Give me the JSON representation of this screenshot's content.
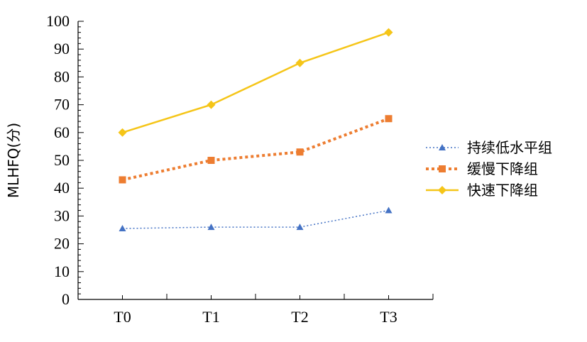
{
  "chart_data": {
    "type": "line",
    "categories": [
      "T0",
      "T1",
      "T2",
      "T3"
    ],
    "ylabel": "MLHFQ(分)",
    "ylim": [
      0,
      100
    ],
    "yticks": [
      0,
      10,
      20,
      30,
      40,
      50,
      60,
      70,
      80,
      90,
      100
    ],
    "grid": false,
    "legend_position": "right",
    "series": [
      {
        "name": "持续低水平组",
        "values": [
          25.5,
          26,
          26,
          32
        ],
        "color": "#4472C4",
        "line": "dotted",
        "marker": "triangle"
      },
      {
        "name": "缓慢下降组",
        "values": [
          43,
          50,
          53,
          65
        ],
        "color": "#ED7D31",
        "line": "dashed",
        "marker": "square"
      },
      {
        "name": "快速下降组",
        "values": [
          60,
          70,
          85,
          96
        ],
        "color": "#F5C518",
        "line": "solid",
        "marker": "diamond"
      }
    ]
  }
}
